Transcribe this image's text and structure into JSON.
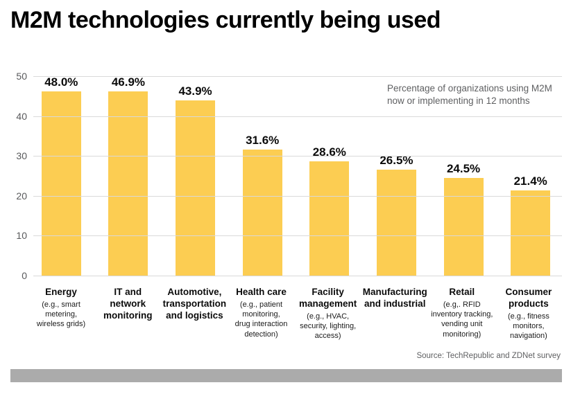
{
  "chart": {
    "title": "M2M technologies currently being used",
    "annotation": "Percentage of organizations using M2M now or implementing in 12 months",
    "source": "Source: TechRepublic and ZDNet survey"
  },
  "chart_data": {
    "type": "bar",
    "title": "M2M technologies currently being used",
    "annotation": "Percentage of organizations using M2M now or implementing in 12 months",
    "source": "Source: TechRepublic and ZDNet survey",
    "categories": [
      "Energy",
      "IT and network monitoring",
      "Automotive, transportation and logistics",
      "Health care",
      "Facility management",
      "Manufacturing and industrial",
      "Retail",
      "Consumer products"
    ],
    "category_details": [
      "(e.g., smart metering, wireless grids)",
      "",
      "",
      "(e.g., patient monitoring, drug interaction detection)",
      "(e.g., HVAC, security, lighting, access)",
      "",
      "(e.g,. RFID inventory tracking, vending unit monitoring)",
      "(e.g., fitness monitors, navigation)"
    ],
    "category_name_wraps": [
      "Energy",
      "IT and\nnetwork\nmonitoring",
      "Automotive,\ntransportation\nand logistics",
      "Health care",
      "Facility\nmanagement",
      "Manufacturing\nand industrial",
      "Retail",
      "Consumer\nproducts"
    ],
    "category_detail_wraps": [
      "(e.g., smart\nmetering,\nwireless grids)",
      "",
      "",
      "(e.g., patient\nmonitoring,\ndrug interaction\ndetection)",
      "(e.g., HVAC,\nsecurity, lighting,\naccess)",
      "",
      "(e.g,. RFID\ninventory tracking,\nvending unit\nmonitoring)",
      "(e.g., fitness\nmonitors,\nnavigation)"
    ],
    "values": [
      48.0,
      46.9,
      43.9,
      31.6,
      28.6,
      26.5,
      24.5,
      21.4
    ],
    "value_labels": [
      "48.0%",
      "46.9%",
      "43.9%",
      "31.6%",
      "28.6%",
      "26.5%",
      "24.5%",
      "21.4%"
    ],
    "ylim": [
      0,
      50
    ],
    "yticks": [
      50,
      40,
      30,
      20,
      10,
      0
    ],
    "grid": true,
    "legend": "none",
    "colors": {
      "bar": "#fccd52",
      "grid": "#d9d9d9",
      "axis_text": "#58595b",
      "annotation_text": "#5e5f61",
      "title_text": "#000000",
      "footer_bar": "#ababab",
      "background": "#ffffff"
    }
  }
}
